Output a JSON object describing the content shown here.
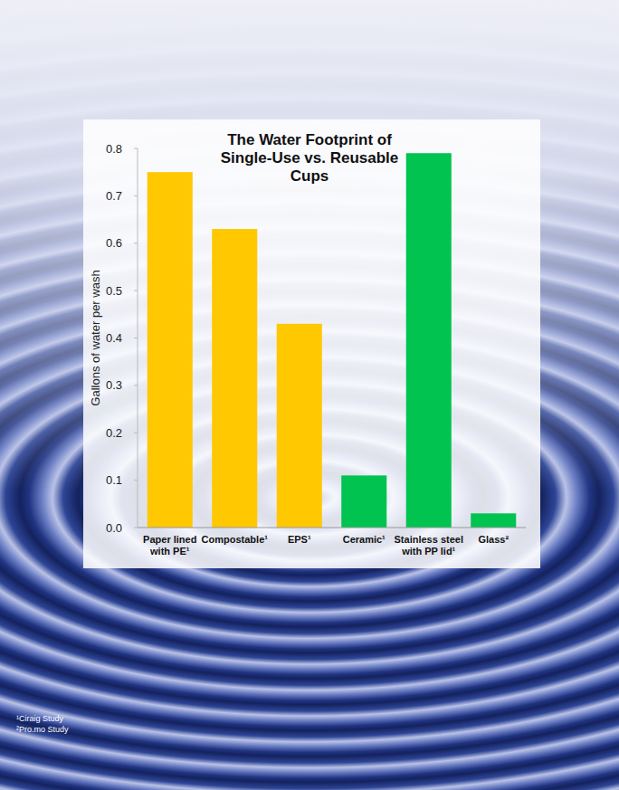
{
  "chart_data": {
    "type": "bar",
    "title": "The Water Footprint of Single-Use vs. Reusable Cups",
    "y_label": "Gallons of water per wash",
    "categories": [
      "Paper lined with PE¹",
      "Compostable¹",
      "EPS¹",
      "Ceramic¹",
      "Stainless steel with PP lid¹",
      "Glass²"
    ],
    "values": [
      0.75,
      0.63,
      0.43,
      0.11,
      0.79,
      0.03
    ],
    "colors": [
      "#ffc800",
      "#ffc800",
      "#ffc800",
      "#00c44f",
      "#00c44f",
      "#00c44f"
    ],
    "ylim": [
      0,
      0.8
    ],
    "yticks": [
      {
        "value": 0,
        "label": "0.0"
      },
      0.1,
      0.2,
      0.3,
      0.4,
      0.5,
      0.6,
      0.7,
      0.8
    ],
    "grid": false,
    "annotations": [
      "¹Ciraig Study",
      "²Pro.mo Study"
    ]
  }
}
